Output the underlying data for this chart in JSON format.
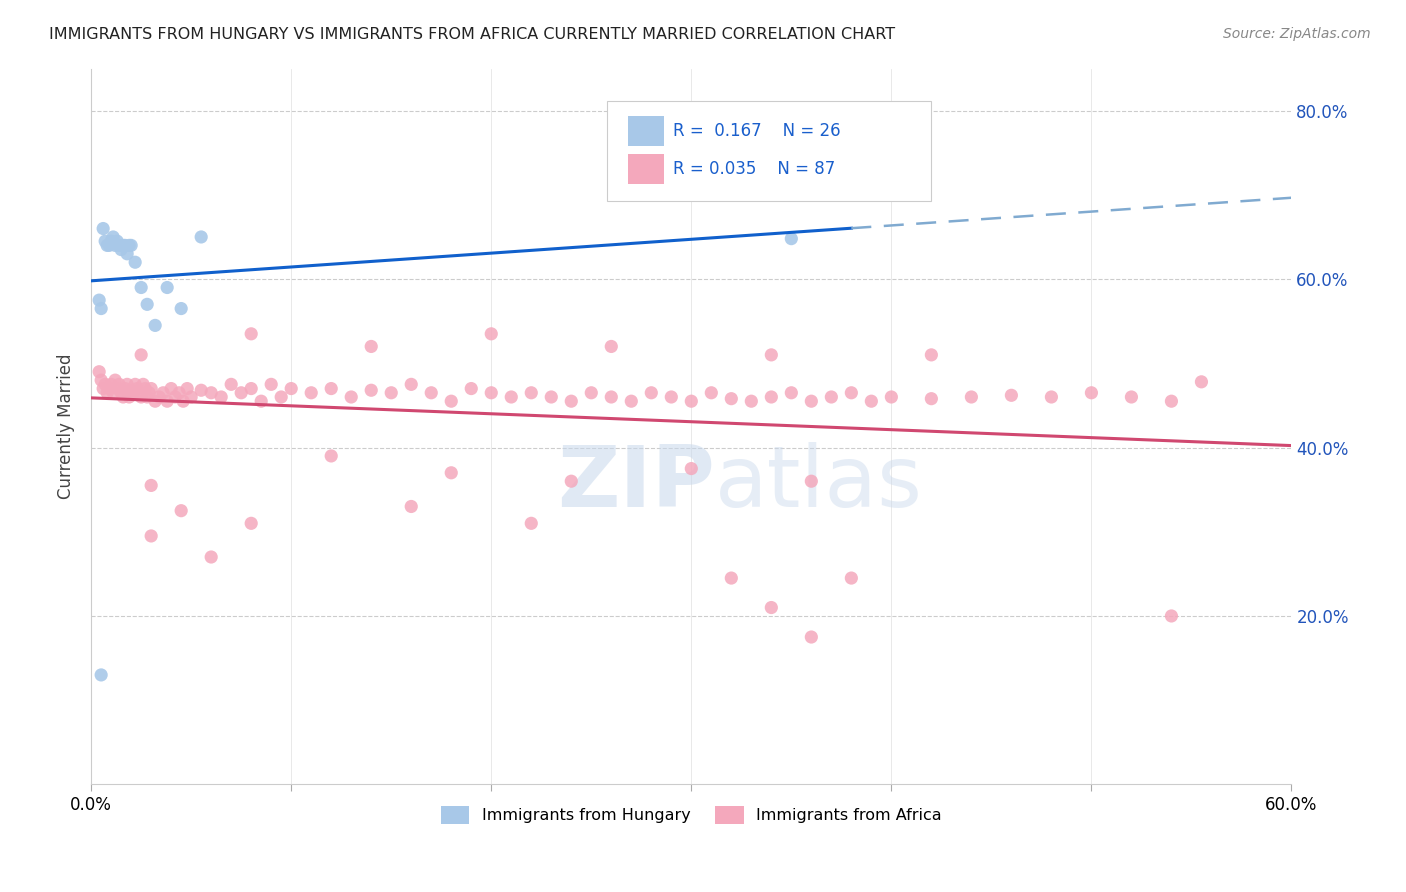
{
  "title": "IMMIGRANTS FROM HUNGARY VS IMMIGRANTS FROM AFRICA CURRENTLY MARRIED CORRELATION CHART",
  "source": "Source: ZipAtlas.com",
  "ylabel": "Currently Married",
  "xlim": [
    0.0,
    0.6
  ],
  "ylim": [
    0.0,
    0.85
  ],
  "hungary_color": "#a8c8e8",
  "africa_color": "#f4a8bc",
  "hungary_trend_color": "#1060cc",
  "africa_trend_color": "#d04870",
  "dashed_extension_color": "#80aad0",
  "background_color": "#ffffff",
  "watermark": "ZIPatlas",
  "hungary_x": [
    0.004,
    0.005,
    0.006,
    0.007,
    0.008,
    0.009,
    0.01,
    0.011,
    0.012,
    0.013,
    0.014,
    0.015,
    0.016,
    0.017,
    0.018,
    0.019,
    0.02,
    0.022,
    0.025,
    0.028,
    0.032,
    0.038,
    0.045,
    0.055,
    0.35,
    0.005
  ],
  "hungary_y": [
    0.575,
    0.565,
    0.66,
    0.645,
    0.64,
    0.64,
    0.645,
    0.65,
    0.64,
    0.645,
    0.64,
    0.635,
    0.64,
    0.64,
    0.63,
    0.64,
    0.64,
    0.62,
    0.59,
    0.57,
    0.545,
    0.59,
    0.565,
    0.65,
    0.648,
    0.13
  ],
  "africa_x": [
    0.004,
    0.005,
    0.006,
    0.007,
    0.008,
    0.009,
    0.01,
    0.011,
    0.012,
    0.013,
    0.014,
    0.015,
    0.016,
    0.017,
    0.018,
    0.019,
    0.02,
    0.021,
    0.022,
    0.023,
    0.024,
    0.025,
    0.026,
    0.027,
    0.028,
    0.029,
    0.03,
    0.032,
    0.034,
    0.036,
    0.038,
    0.04,
    0.042,
    0.044,
    0.046,
    0.048,
    0.05,
    0.055,
    0.06,
    0.065,
    0.07,
    0.075,
    0.08,
    0.085,
    0.09,
    0.095,
    0.1,
    0.11,
    0.12,
    0.13,
    0.14,
    0.15,
    0.16,
    0.17,
    0.18,
    0.19,
    0.2,
    0.21,
    0.22,
    0.23,
    0.24,
    0.25,
    0.26,
    0.27,
    0.28,
    0.29,
    0.3,
    0.31,
    0.32,
    0.33,
    0.34,
    0.35,
    0.36,
    0.37,
    0.38,
    0.39,
    0.4,
    0.42,
    0.44,
    0.46,
    0.48,
    0.5,
    0.52,
    0.54,
    0.555,
    0.03,
    0.045
  ],
  "africa_y": [
    0.49,
    0.48,
    0.47,
    0.475,
    0.465,
    0.47,
    0.475,
    0.465,
    0.48,
    0.47,
    0.475,
    0.465,
    0.46,
    0.47,
    0.475,
    0.46,
    0.468,
    0.465,
    0.475,
    0.47,
    0.465,
    0.46,
    0.475,
    0.47,
    0.46,
    0.465,
    0.47,
    0.455,
    0.46,
    0.465,
    0.455,
    0.47,
    0.46,
    0.465,
    0.455,
    0.47,
    0.46,
    0.468,
    0.465,
    0.46,
    0.475,
    0.465,
    0.47,
    0.455,
    0.475,
    0.46,
    0.47,
    0.465,
    0.47,
    0.46,
    0.468,
    0.465,
    0.475,
    0.465,
    0.455,
    0.47,
    0.465,
    0.46,
    0.465,
    0.46,
    0.455,
    0.465,
    0.46,
    0.455,
    0.465,
    0.46,
    0.455,
    0.465,
    0.458,
    0.455,
    0.46,
    0.465,
    0.455,
    0.46,
    0.465,
    0.455,
    0.46,
    0.458,
    0.46,
    0.462,
    0.46,
    0.465,
    0.46,
    0.455,
    0.478,
    0.355,
    0.325
  ],
  "africa_extra_x": [
    0.025,
    0.08,
    0.14,
    0.2,
    0.26,
    0.34,
    0.42,
    0.12,
    0.18,
    0.24,
    0.3,
    0.36,
    0.16,
    0.22,
    0.08,
    0.03,
    0.06,
    0.32,
    0.38,
    0.34,
    0.36,
    0.54
  ],
  "africa_extra_y": [
    0.51,
    0.535,
    0.52,
    0.535,
    0.52,
    0.51,
    0.51,
    0.39,
    0.37,
    0.36,
    0.375,
    0.36,
    0.33,
    0.31,
    0.31,
    0.295,
    0.27,
    0.245,
    0.245,
    0.21,
    0.175,
    0.2
  ]
}
